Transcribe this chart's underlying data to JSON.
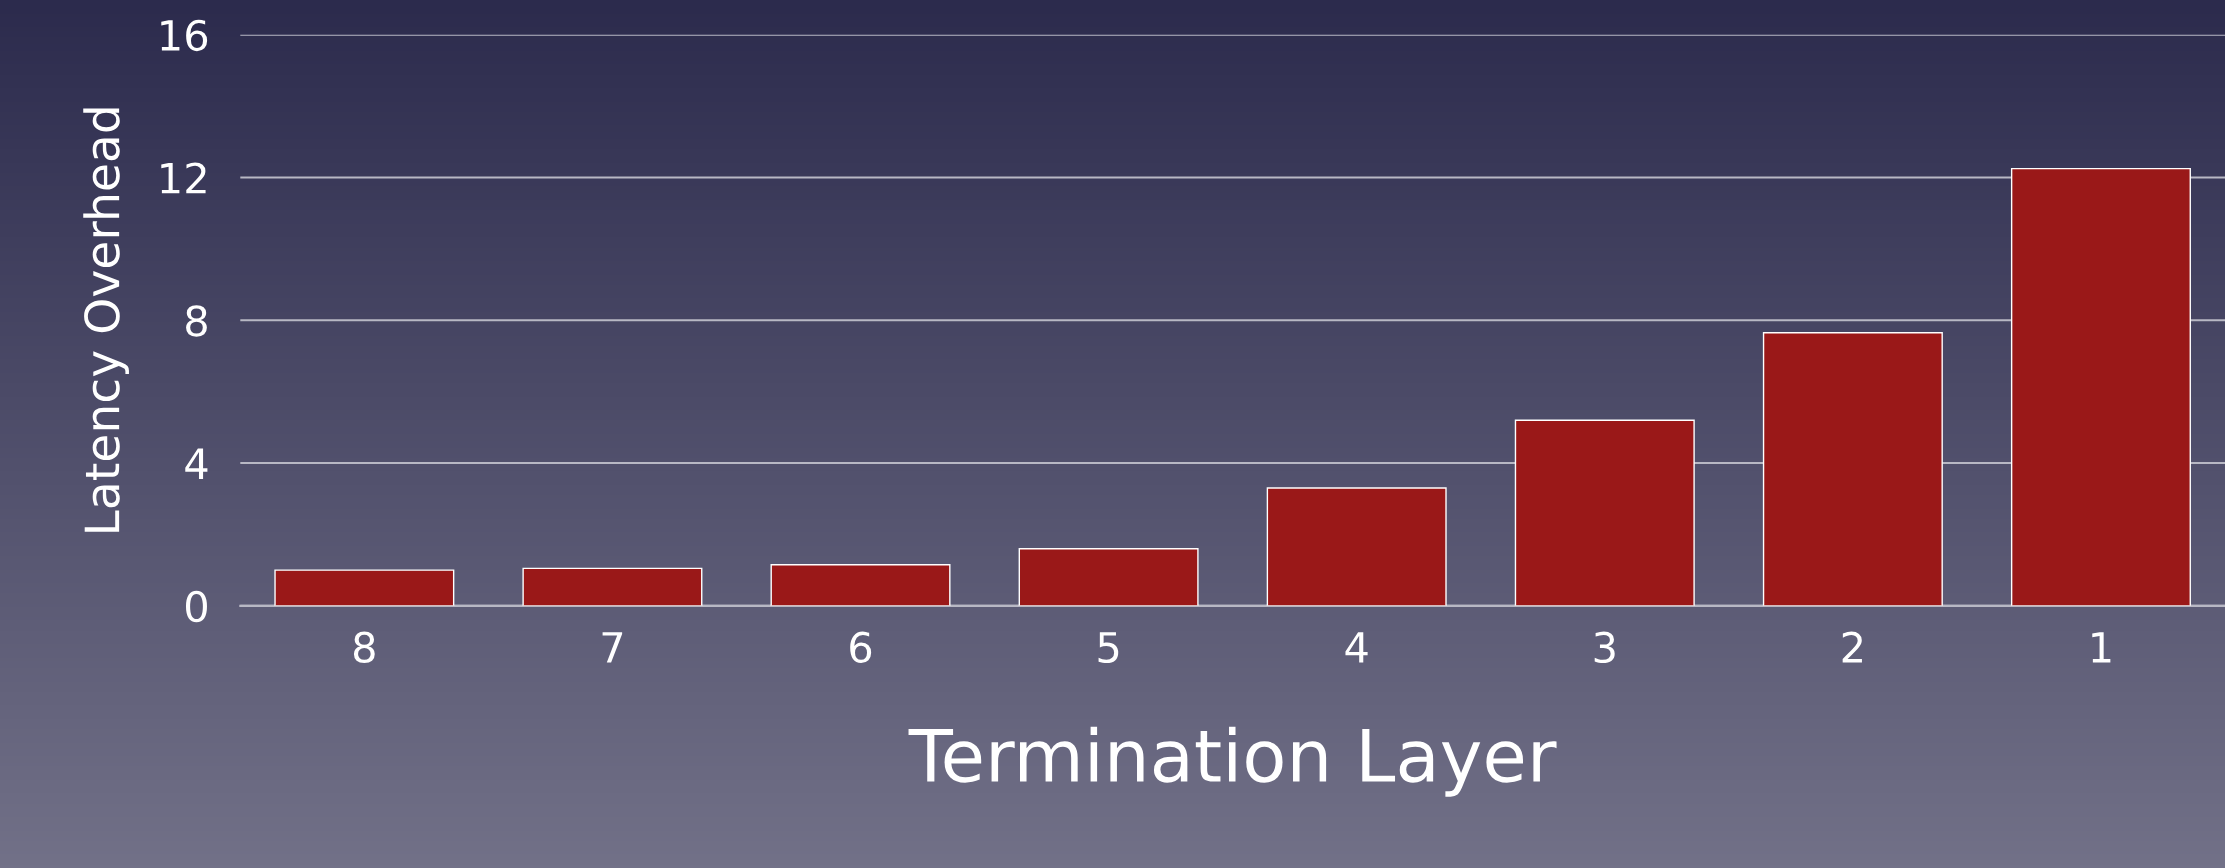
{
  "chart_data": {
    "type": "bar",
    "xlabel": "Termination Layer",
    "ylabel": "Latency Overhead",
    "categories": [
      "8",
      "7",
      "6",
      "5",
      "4",
      "3",
      "2",
      "1"
    ],
    "values": [
      1.0,
      1.05,
      1.15,
      1.6,
      3.3,
      5.2,
      7.65,
      12.25
    ],
    "color": "#9a1818",
    "ylim": [
      0,
      16
    ],
    "yticks": [
      0,
      4,
      8,
      12,
      16
    ],
    "grid": "y"
  }
}
